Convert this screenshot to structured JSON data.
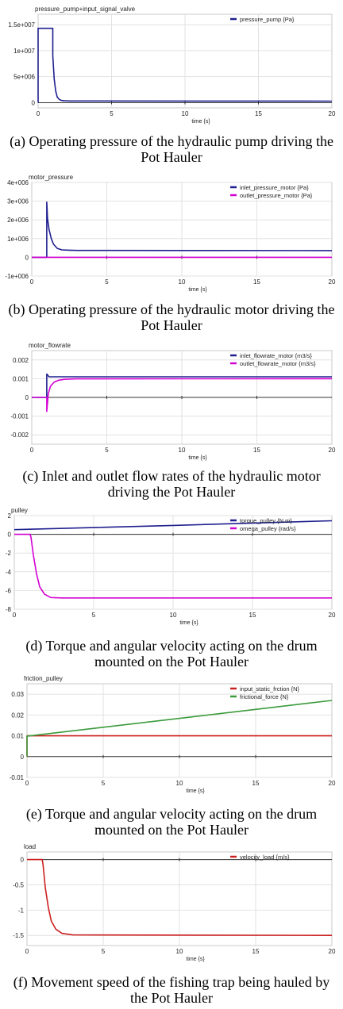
{
  "chart_data": [
    {
      "type": "line",
      "title": "pressure_pump+input_signal_valve",
      "caption": "(a) Operating pressure of the hydraulic pump driving the Pot Hauler",
      "xlabel": "time {s}",
      "xlim": [
        0,
        20
      ],
      "ylim": [
        -1000000,
        17000000
      ],
      "xticks": [
        0,
        5,
        10,
        15,
        20
      ],
      "xtick_labels": [
        "0",
        "5",
        "10",
        "15",
        "20"
      ],
      "yticks": [
        0,
        5000000,
        10000000,
        15000000
      ],
      "ytick_labels": [
        "0",
        "5e+006",
        "1e+007",
        "1.5e+007"
      ],
      "grid": true,
      "legend_position": "top-right",
      "series": [
        {
          "name": "pressure_pump {Pa}",
          "color": "#1f1f8f",
          "x": [
            0,
            0,
            1.0,
            1.0,
            1.1,
            1.2,
            1.3,
            1.45,
            1.6,
            1.8,
            2.2,
            3,
            20
          ],
          "y": [
            0,
            14300000,
            14300000,
            9000000,
            4500000,
            2200000,
            1100000,
            600000,
            420000,
            360000,
            330000,
            320000,
            300000
          ]
        }
      ]
    },
    {
      "type": "line",
      "title": "motor_pressure",
      "caption": "(b) Operating pressure of the hydraulic motor driving the Pot Hauler",
      "xlabel": "time {s}",
      "xlim": [
        0,
        20
      ],
      "ylim": [
        -1000000,
        4000000
      ],
      "xticks": [
        0,
        5,
        10,
        15,
        20
      ],
      "xtick_labels": [
        "0",
        "5",
        "10",
        "15",
        "20"
      ],
      "yticks": [
        -1000000,
        0,
        1000000,
        2000000,
        3000000,
        4000000
      ],
      "ytick_labels": [
        "-1e+006",
        "0",
        "1e+006",
        "2e+006",
        "3e+006",
        "4e+006"
      ],
      "grid": true,
      "legend_position": "top-right",
      "series": [
        {
          "name": "inlet_pressure_motor {Pa}",
          "color": "#1f1f8f",
          "x": [
            0,
            1.0,
            1.0,
            1.05,
            1.15,
            1.3,
            1.45,
            1.7,
            2.0,
            2.5,
            3,
            20
          ],
          "y": [
            0,
            0,
            2950000,
            2100000,
            1500000,
            1000000,
            700000,
            480000,
            400000,
            380000,
            370000,
            360000
          ]
        },
        {
          "name": "outlet_pressure_motor {Pa}",
          "color": "#d400d4",
          "x": [
            0,
            20
          ],
          "y": [
            0,
            0
          ]
        }
      ]
    },
    {
      "type": "line",
      "title": "motor_flowrate",
      "caption": "(c) Inlet and outlet flow rates of the hydraulic motor driving the Pot Hauler",
      "xlabel": "time {s}",
      "xlim": [
        0,
        20
      ],
      "ylim": [
        -0.0025,
        0.0025
      ],
      "xticks": [
        0,
        5,
        10,
        15,
        20
      ],
      "xtick_labels": [
        "0",
        "5",
        "10",
        "15",
        "20"
      ],
      "yticks": [
        -0.002,
        -0.001,
        0,
        0.001,
        0.002
      ],
      "ytick_labels": [
        "-0.002",
        "-0.001",
        "0",
        "0.001",
        "0.002"
      ],
      "grid": true,
      "legend_position": "top-right",
      "series": [
        {
          "name": "inlet_flowrate_motor {m3/s}",
          "color": "#1f1f8f",
          "x": [
            0,
            1.0,
            1.0,
            1.15,
            1.3,
            20
          ],
          "y": [
            0,
            0,
            0.00125,
            0.0011,
            0.0011,
            0.0011
          ]
        },
        {
          "name": "outlet_flowrate_motor {m3/s}",
          "color": "#d400d4",
          "x": [
            0,
            1.0,
            1.0,
            1.1,
            1.25,
            1.5,
            1.8,
            2.2,
            3,
            20
          ],
          "y": [
            0,
            0,
            -0.00075,
            0.0002,
            0.0006,
            0.00082,
            0.00092,
            0.00097,
            0.00099,
            0.001
          ]
        }
      ]
    },
    {
      "type": "line",
      "title": "pulley",
      "caption": "(d) Torque and angular velocity acting on the drum mounted on the Pot Hauler",
      "xlabel": "time {s}",
      "xlim": [
        0,
        20
      ],
      "ylim": [
        -8,
        2
      ],
      "xticks": [
        0,
        5,
        10,
        15,
        20
      ],
      "xtick_labels": [
        "0",
        "5",
        "10",
        "15",
        "20"
      ],
      "yticks": [
        -8,
        -6,
        -4,
        -2,
        0,
        2
      ],
      "ytick_labels": [
        "-8",
        "-6",
        "-4",
        "-2",
        "0",
        "2"
      ],
      "grid": true,
      "legend_position": "top-right",
      "series": [
        {
          "name": "torque_pulley {N.m}",
          "color": "#1f1f8f",
          "x": [
            0,
            5,
            10,
            15,
            20
          ],
          "y": [
            0.5,
            0.72,
            0.95,
            1.2,
            1.45
          ]
        },
        {
          "name": "omega_pulley {rad/s}",
          "color": "#d400d4",
          "x": [
            0,
            1.0,
            1.05,
            1.2,
            1.4,
            1.6,
            1.9,
            2.3,
            3,
            20
          ],
          "y": [
            0,
            0,
            -0.3,
            -2.2,
            -4.2,
            -5.6,
            -6.4,
            -6.75,
            -6.8,
            -6.8
          ]
        }
      ]
    },
    {
      "type": "line",
      "title": "friction_pulley",
      "caption": "(e) Torque and angular velocity acting on the drum mounted on the Pot Hauler",
      "xlabel": "time {s}",
      "xlim": [
        0,
        20
      ],
      "ylim": [
        -0.01,
        0.035
      ],
      "xticks": [
        0,
        5,
        10,
        15,
        20
      ],
      "xtick_labels": [
        "0",
        "5",
        "10",
        "15",
        "20"
      ],
      "yticks": [
        -0.01,
        0,
        0.01,
        0.02,
        0.03
      ],
      "ytick_labels": [
        "-0.01",
        "0",
        "0.01",
        "0.02",
        "0.03"
      ],
      "grid": true,
      "legend_position": "top-right",
      "series": [
        {
          "name": "input_static_frction {N}",
          "color": "#cc1f1f",
          "x": [
            0,
            0,
            20
          ],
          "y": [
            0,
            0.01,
            0.01
          ]
        },
        {
          "name": "frictional_force {N}",
          "color": "#3a9a3a",
          "x": [
            0,
            0,
            20
          ],
          "y": [
            0,
            0.0098,
            0.027
          ]
        }
      ]
    },
    {
      "type": "line",
      "title": "load",
      "caption": "(f) Movement speed of the fishing trap being hauled by the Pot Hauler",
      "xlabel": "time {s}",
      "xlim": [
        0,
        20
      ],
      "ylim": [
        -1.7,
        0.15
      ],
      "xticks": [
        0,
        5,
        10,
        15,
        20
      ],
      "xtick_labels": [
        "0",
        "5",
        "10",
        "15",
        "20"
      ],
      "yticks": [
        -1.5,
        -1,
        -0.5,
        0
      ],
      "ytick_labels": [
        "-1.5",
        "-1",
        "-0.5",
        "0"
      ],
      "grid": true,
      "legend_position": "top-right",
      "series": [
        {
          "name": "velocity_load {m/s}",
          "color": "#cc1f1f",
          "x": [
            0,
            1.0,
            1.05,
            1.2,
            1.4,
            1.6,
            1.9,
            2.3,
            3,
            20
          ],
          "y": [
            0,
            0,
            -0.1,
            -0.55,
            -0.95,
            -1.22,
            -1.38,
            -1.46,
            -1.49,
            -1.5
          ]
        }
      ]
    }
  ]
}
